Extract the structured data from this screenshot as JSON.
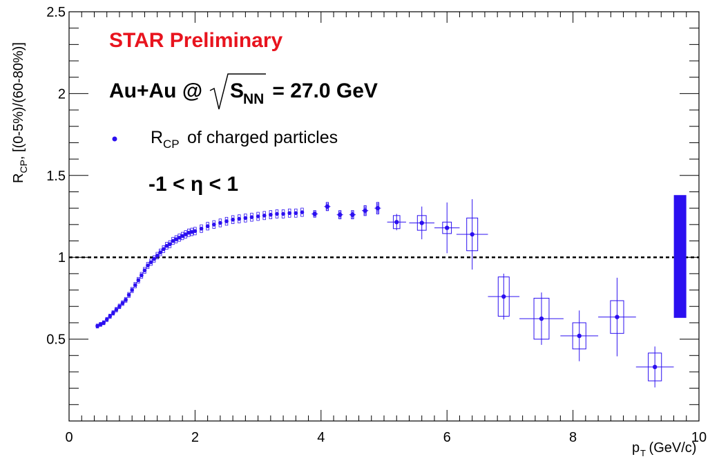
{
  "chart_data": {
    "type": "scatter",
    "title": "STAR Preliminary",
    "collision_prefix": "Au+Au @",
    "collision_sqrt": "S",
    "collision_sub": "NN",
    "collision_energy": " = 27.0 GeV",
    "eta_range": "-1 < η < 1",
    "xlabel_main": "p",
    "xlabel_sub": "T",
    "xlabel_unit": " (GeV/c)",
    "ylabel_main": "R",
    "ylabel_sub": "CP",
    "ylabel_rest": ", [(0-5%)/(60-80%)]",
    "xlim": [
      0,
      10
    ],
    "ylim": [
      0,
      2.5
    ],
    "x_ticks": [
      0,
      2,
      4,
      6,
      8,
      10
    ],
    "y_ticks": [
      0.5,
      1,
      1.5,
      2,
      2.5
    ],
    "grid": false,
    "reference_line": 1.0,
    "normalization_band": {
      "x": 9.7,
      "low": 0.63,
      "high": 1.38
    },
    "legend": {
      "placement": "top-left",
      "label_main": "R",
      "label_sub": "CP",
      "label_rest": " of charged particles"
    },
    "series": [
      {
        "name": "RCP of charged particles",
        "color": "#2b0ff0",
        "dense_points": [
          [
            0.45,
            0.58
          ],
          [
            0.5,
            0.59
          ],
          [
            0.55,
            0.6
          ],
          [
            0.6,
            0.62
          ],
          [
            0.65,
            0.64
          ],
          [
            0.7,
            0.66
          ],
          [
            0.75,
            0.68
          ],
          [
            0.8,
            0.7
          ],
          [
            0.85,
            0.72
          ],
          [
            0.9,
            0.74
          ],
          [
            0.95,
            0.77
          ],
          [
            1.0,
            0.8
          ],
          [
            1.05,
            0.83
          ],
          [
            1.1,
            0.86
          ],
          [
            1.15,
            0.89
          ],
          [
            1.2,
            0.92
          ],
          [
            1.25,
            0.95
          ],
          [
            1.3,
            0.97
          ],
          [
            1.35,
            0.99
          ],
          [
            1.4,
            1.01
          ],
          [
            1.45,
            1.03
          ],
          [
            1.5,
            1.05
          ],
          [
            1.55,
            1.07
          ],
          [
            1.6,
            1.08
          ],
          [
            1.65,
            1.1
          ],
          [
            1.7,
            1.11
          ],
          [
            1.75,
            1.12
          ],
          [
            1.8,
            1.13
          ],
          [
            1.85,
            1.14
          ],
          [
            1.9,
            1.15
          ],
          [
            1.95,
            1.155
          ],
          [
            2.0,
            1.16
          ],
          [
            2.1,
            1.175
          ],
          [
            2.2,
            1.19
          ],
          [
            2.3,
            1.2
          ],
          [
            2.4,
            1.21
          ],
          [
            2.5,
            1.22
          ],
          [
            2.6,
            1.23
          ],
          [
            2.7,
            1.235
          ],
          [
            2.8,
            1.24
          ],
          [
            2.9,
            1.245
          ],
          [
            3.0,
            1.25
          ],
          [
            3.1,
            1.255
          ],
          [
            3.2,
            1.26
          ],
          [
            3.3,
            1.265
          ],
          [
            3.4,
            1.265
          ],
          [
            3.5,
            1.27
          ],
          [
            3.6,
            1.27
          ],
          [
            3.7,
            1.275
          ]
        ],
        "points": [
          {
            "x": 3.9,
            "y": 1.265,
            "xerr": 0.05,
            "yerr": 0.015,
            "syst": 0.02
          },
          {
            "x": 4.1,
            "y": 1.31,
            "xerr": 0.05,
            "yerr": 0.02,
            "syst": 0.025
          },
          {
            "x": 4.3,
            "y": 1.26,
            "xerr": 0.05,
            "yerr": 0.02,
            "syst": 0.025
          },
          {
            "x": 4.5,
            "y": 1.26,
            "xerr": 0.05,
            "yerr": 0.02,
            "syst": 0.025
          },
          {
            "x": 4.7,
            "y": 1.285,
            "xerr": 0.05,
            "yerr": 0.025,
            "syst": 0.03
          },
          {
            "x": 4.9,
            "y": 1.3,
            "xerr": 0.05,
            "yerr": 0.03,
            "syst": 0.035
          },
          {
            "x": 5.2,
            "y": 1.215,
            "xerr": 0.15,
            "yerr": 0.05,
            "syst": 0.04
          },
          {
            "x": 5.6,
            "y": 1.21,
            "xerr": 0.2,
            "yerr": 0.1,
            "syst": 0.045
          },
          {
            "x": 6.0,
            "y": 1.18,
            "xerr": 0.2,
            "yerr": 0.155,
            "syst": 0.035
          },
          {
            "x": 6.4,
            "y": 1.14,
            "xerr": 0.25,
            "yerr": 0.215,
            "syst": 0.1
          },
          {
            "x": 6.9,
            "y": 0.76,
            "xerr": 0.25,
            "yerr": 0.14,
            "syst": 0.12
          },
          {
            "x": 7.5,
            "y": 0.625,
            "xerr": 0.35,
            "yerr": 0.16,
            "syst": 0.125
          },
          {
            "x": 8.1,
            "y": 0.52,
            "xerr": 0.3,
            "yerr": 0.155,
            "syst": 0.08
          },
          {
            "x": 8.7,
            "y": 0.635,
            "xerr": 0.3,
            "yerr": 0.24,
            "syst": 0.1
          },
          {
            "x": 9.3,
            "y": 0.33,
            "xerr": 0.3,
            "yerr": 0.125,
            "syst": 0.085
          }
        ]
      }
    ]
  }
}
